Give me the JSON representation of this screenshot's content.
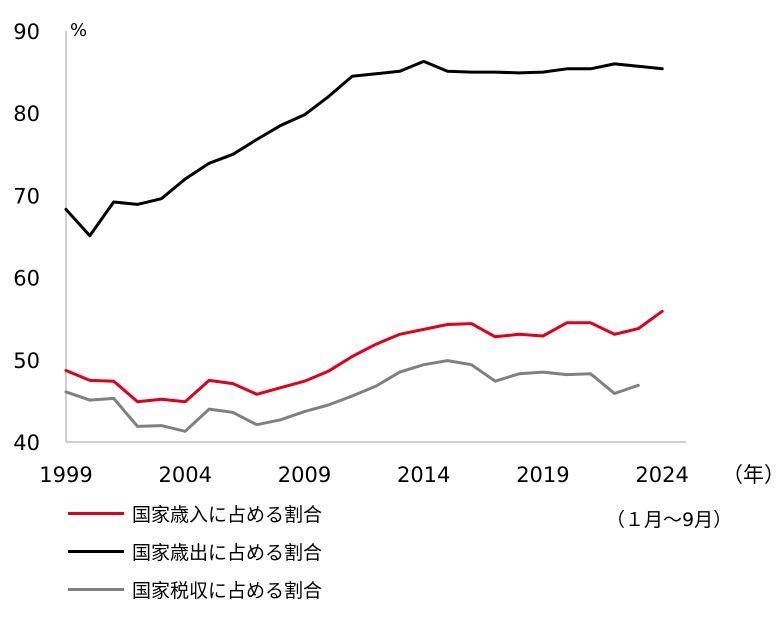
{
  "chart_data": {
    "type": "line",
    "unit": "%",
    "x_unit": "（年）",
    "note": "（１月～9月）",
    "ylim": [
      40,
      90
    ],
    "yticks": [
      40,
      50,
      60,
      70,
      80,
      90
    ],
    "xlim": [
      1999,
      2025
    ],
    "xticks": [
      1999,
      2004,
      2009,
      2014,
      2019,
      2024
    ],
    "grid": false,
    "legend_position": "bottom-left",
    "x": [
      1999,
      2000,
      2001,
      2002,
      2003,
      2004,
      2005,
      2006,
      2007,
      2008,
      2009,
      2010,
      2011,
      2012,
      2013,
      2014,
      2015,
      2016,
      2017,
      2018,
      2019,
      2020,
      2021,
      2022,
      2023,
      2024
    ],
    "series": [
      {
        "name": "国家歳入に占める割合",
        "color": "#e0001b",
        "values": [
          48.7,
          47.5,
          47.4,
          44.9,
          45.2,
          44.9,
          47.5,
          47.1,
          45.8,
          46.6,
          47.4,
          48.6,
          50.4,
          51.9,
          53.1,
          53.7,
          54.3,
          54.4,
          52.8,
          53.1,
          52.9,
          54.5,
          54.5,
          53.1,
          53.8,
          55.9
        ]
      },
      {
        "name": "国家歳出に占める割合",
        "color": "#000000",
        "values": [
          68.3,
          65.1,
          69.2,
          68.9,
          69.6,
          72.0,
          73.9,
          75.0,
          76.8,
          78.5,
          79.8,
          82.0,
          84.5,
          84.8,
          85.1,
          86.3,
          85.1,
          85.0,
          85.0,
          84.9,
          85.0,
          85.4,
          85.4,
          86.0,
          85.7,
          85.4
        ]
      },
      {
        "name": "国家税収に占める割合",
        "color": "#808080",
        "values": [
          46.1,
          45.1,
          45.3,
          41.9,
          42.0,
          41.3,
          44.0,
          43.6,
          42.1,
          42.7,
          43.7,
          44.5,
          45.6,
          46.8,
          48.5,
          49.4,
          49.9,
          49.4,
          47.4,
          48.3,
          48.5,
          48.2,
          48.3,
          45.9,
          46.9,
          null
        ]
      }
    ]
  }
}
